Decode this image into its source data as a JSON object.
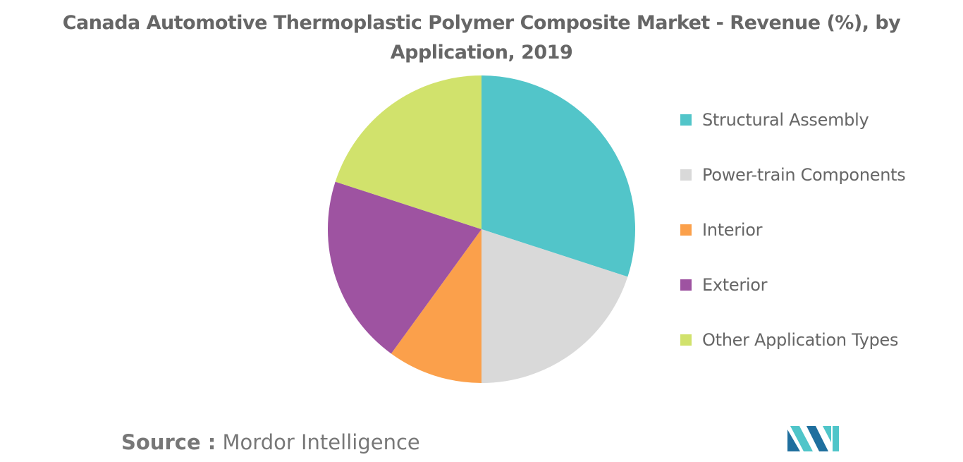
{
  "chart_data": {
    "type": "pie",
    "title": "Canada Automotive Thermoplastic Polymer Composite Market - Revenue (%), by Application, 2019",
    "legend_placement": "right",
    "categories": [
      "Structural Assembly",
      "Power-train Components",
      "Interior",
      "Exterior",
      "Other Application Types"
    ],
    "values": [
      30,
      20,
      10,
      20,
      20
    ],
    "colors": [
      "#52c5c9",
      "#d9d9d9",
      "#fba04b",
      "#9e53a1",
      "#d1e26c"
    ]
  },
  "source": {
    "prefix": "Source :",
    "name": "Mordor Intelligence"
  },
  "logo": {
    "icon": "mordor-intelligence-logo-icon",
    "colors": [
      "#1f6f9e",
      "#4fc5c9"
    ]
  }
}
